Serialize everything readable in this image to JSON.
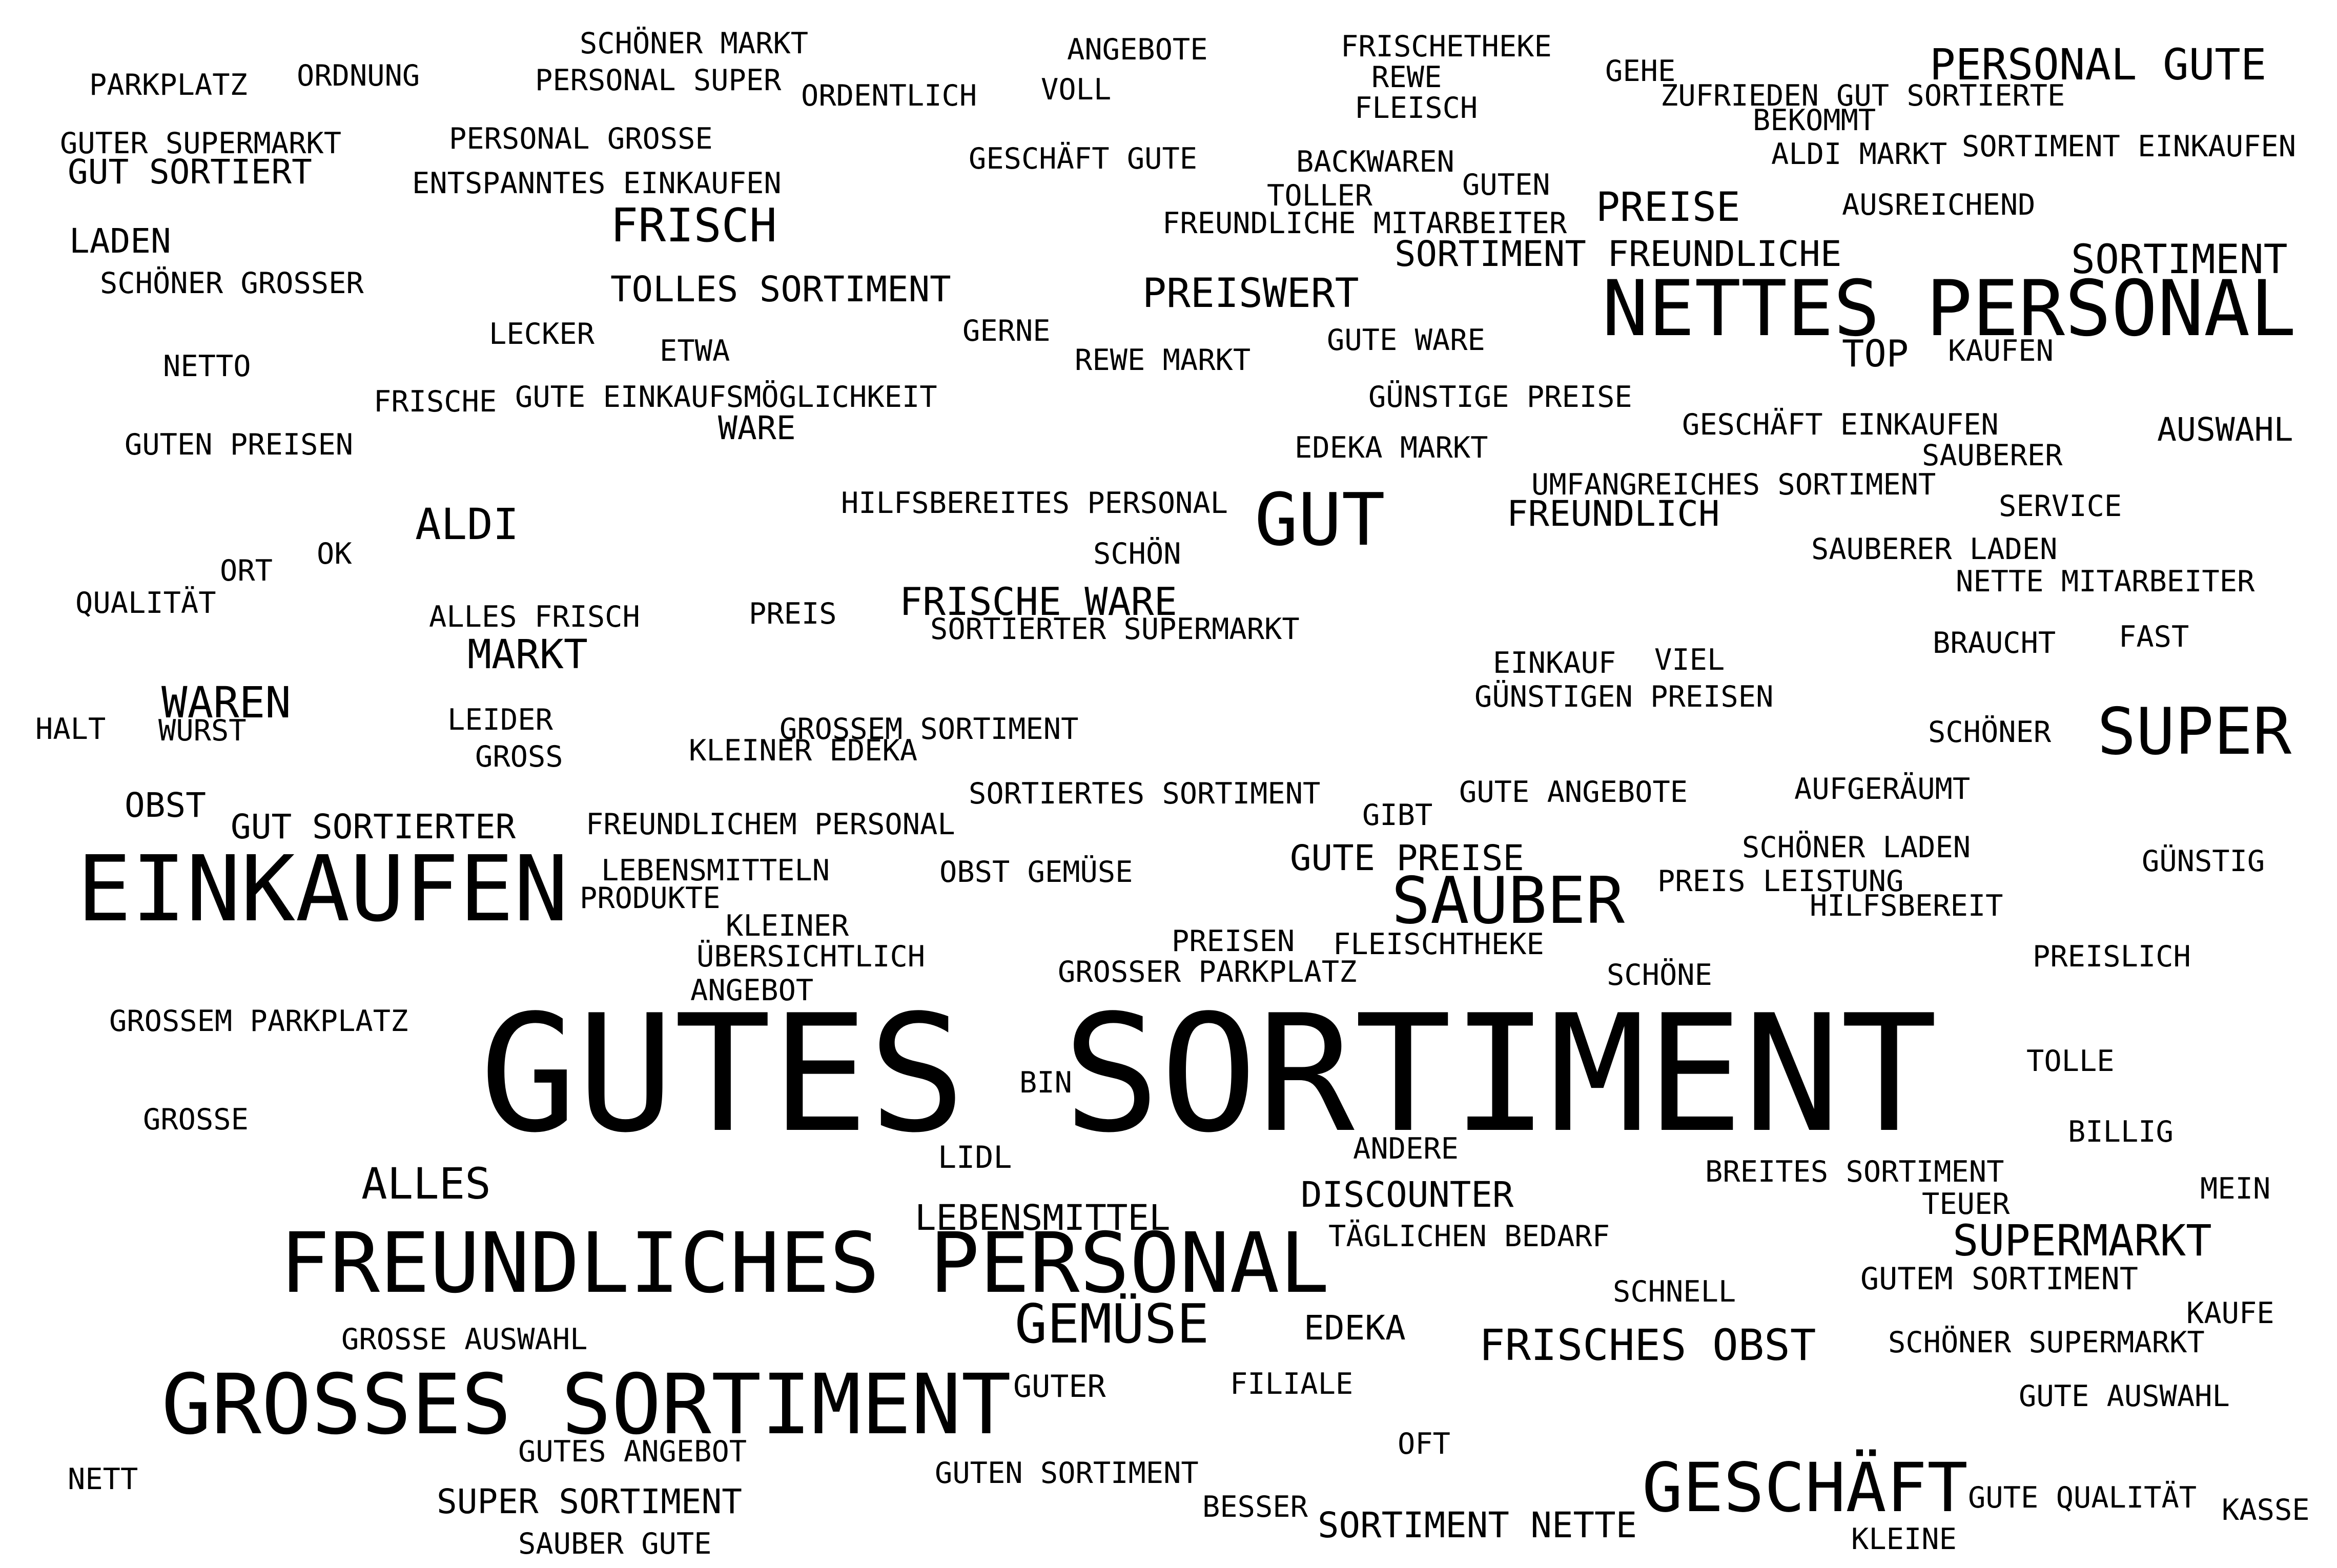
{
  "text_color": "#000000",
  "background_color": "#ffffff",
  "words": [
    "GUTES SORTIMENT",
    "FREUNDLICHES PERSONAL",
    "GROSSES SORTIMENT",
    "EINKAUFEN",
    "NETTES PERSONAL",
    "GESCHÄFT",
    "SAUBER",
    "GUT",
    "SUPER",
    "GEMÜSE",
    "FRISCH",
    "SUPERMARKT",
    "PERSONAL GUTE",
    "SORTIMENT",
    "ALDI",
    "FRISCHES OBST",
    "PREISWERT",
    "PREISE",
    "TOLLES SORTIMENT",
    "ALLES",
    "MARKT",
    "FRISCHE WARE",
    "WAREN",
    "SORTIMENT FREUNDLICHE",
    "GUTE PREISE",
    "FREUNDLICH",
    "DISCOUNTER",
    "LEBENSMITTEL",
    "SUPER SORTIMENT",
    "GUT SORTIERTER",
    "SORTIMENT NETTE",
    "EDEKA",
    "GUT SORTIERT",
    "LADEN",
    "OBST",
    "TOP",
    "AUSWAHL",
    "PARKPLATZ",
    "ORDNUNG",
    "SCHÖNER MARKT",
    "PERSONAL SUPER",
    "ORDENTLICH",
    "ANGEBOTE",
    "VOLL",
    "FRISCHETHEKE",
    "REWE",
    "FLEISCH",
    "GEHE",
    "ZUFRIEDEN GUT SORTIERTE",
    "BEKOMMT",
    "ALDI MARKT",
    "SORTIMENT EINKAUFEN",
    "GUTER SUPERMARKT",
    "PERSONAL GROSSE",
    "GESCHÄFT GUTE",
    "BACKWAREN",
    "GUTEN",
    "TOLLER",
    "ENTSPANNTES EINKAUFEN",
    "AUSREICHEND",
    "FREUNDLICHE MITARBEITER",
    "SCHÖNER GROSSER",
    "LECKER",
    "ETWA",
    "GERNE",
    "REWE MARKT",
    "GUTE WARE",
    "KAUFEN",
    "NETTO",
    "FRISCHE",
    "GUTE EINKAUFSMÖGLICHKEIT",
    "GÜNSTIGE PREISE",
    "GESCHÄFT EINKAUFEN",
    "WARE",
    "GUTEN PREISEN",
    "EDEKA MARKT",
    "SAUBERER",
    "UMFANGREICHES SORTIMENT",
    "HILFSBEREITES PERSONAL",
    "SERVICE",
    "SCHÖN",
    "SAUBERER LADEN",
    "OK",
    "ORT",
    "NETTE MITARBEITER",
    "QUALITÄT",
    "ALLES FRISCH",
    "PREIS",
    "SORTIERTER SUPERMARKT",
    "BRAUCHT",
    "FAST",
    "EINKAUF",
    "VIEL",
    "GÜNSTIGEN PREISEN",
    "LEIDER",
    "HALT",
    "WURST",
    "GROSSEM SORTIMENT",
    "SCHÖNER",
    "GROSS",
    "KLEINER EDEKA",
    "SORTIERTES SORTIMENT",
    "GUTE ANGEBOTE",
    "AUFGERÄUMT",
    "GIBT",
    "FREUNDLICHEM PERSONAL",
    "SCHÖNER LADEN",
    "LEBENSMITTELN",
    "OBST GEMÜSE",
    "GÜNSTIG",
    "PREIS LEISTUNG",
    "PRODUKTE",
    "HILFSBEREIT",
    "KLEINER",
    "PREISEN",
    "FLEISCHTHEKE",
    "ÜBERSICHTLICH",
    "PREISLICH",
    "GROSSER PARKPLATZ",
    "SCHÖNE",
    "ANGEBOT",
    "GROSSEM PARKPLATZ",
    "TOLLE",
    "BIN",
    "GROSSE",
    "BILLIG",
    "ANDERE",
    "LIDL",
    "BREITES SORTIMENT",
    "MEIN",
    "TEUER",
    "TÄGLICHEN BEDARF",
    "GUTEM SORTIMENT",
    "SCHNELL",
    "KAUFE",
    "GROSSE AUSWAHL",
    "SCHÖNER SUPERMARKT",
    "FILIALE",
    "GUTER",
    "GUTE AUSWAHL",
    "OFT",
    "GUTES ANGEBOT",
    "NETT",
    "GUTEN SORTIMENT",
    "GUTE QUALITÄT",
    "KASSE",
    "BESSER",
    "SAUBER GUTE",
    "KLEINE"
  ]
}
